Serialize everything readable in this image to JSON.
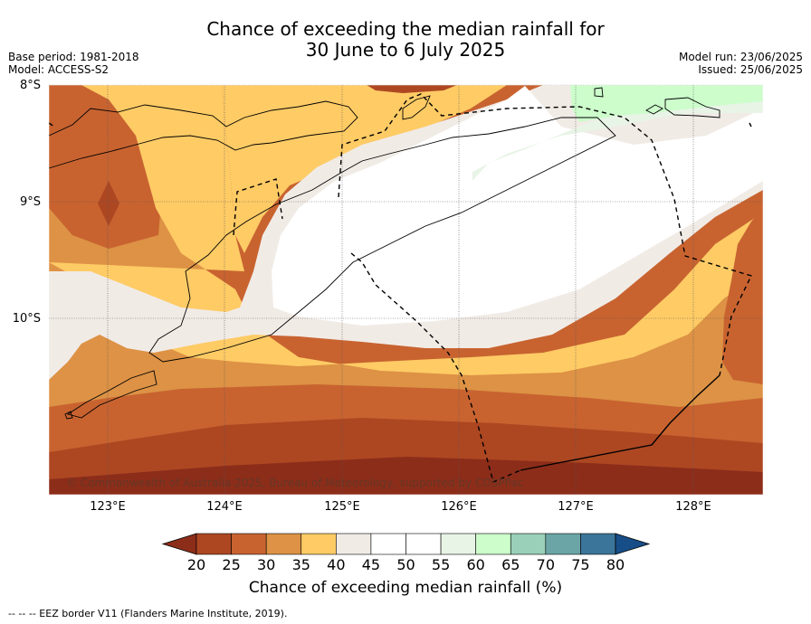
{
  "header": {
    "title_line1": "Chance of exceeding the median rainfall for",
    "title_line2": "30 June to 6 July 2025",
    "base_period": "Base period: 1981-2018",
    "model": "Model: ACCESS-S2",
    "model_run": "Model run: 23/06/2025",
    "issued": "Issued: 25/06/2025"
  },
  "map": {
    "lat_labels": [
      "8°S",
      "9°S",
      "10°S"
    ],
    "lon_labels": [
      "123°E",
      "124°E",
      "125°E",
      "126°E",
      "127°E",
      "128°E"
    ],
    "copyright": "© Commonwealth of Australia 2025, Bureau of Meteorology, supported by COSPPac"
  },
  "legend": {
    "ticks": [
      "20",
      "25",
      "30",
      "35",
      "40",
      "45",
      "50",
      "55",
      "60",
      "65",
      "70",
      "75",
      "80"
    ],
    "title": "Chance of exceeding median rainfall (%)",
    "colors": [
      "#8c2d1a",
      "#ad4722",
      "#c86330",
      "#dd9245",
      "#fecb65",
      "#f1ebe6",
      "#ffffff",
      "#ffffff",
      "#e8f4e6",
      "#ccfdcb",
      "#9acfb9",
      "#6ba5a5",
      "#3b7599",
      "#174e88"
    ]
  },
  "footnote": "--  --  -- EEZ border V11 (Flanders Marine Institute, 2019)."
}
